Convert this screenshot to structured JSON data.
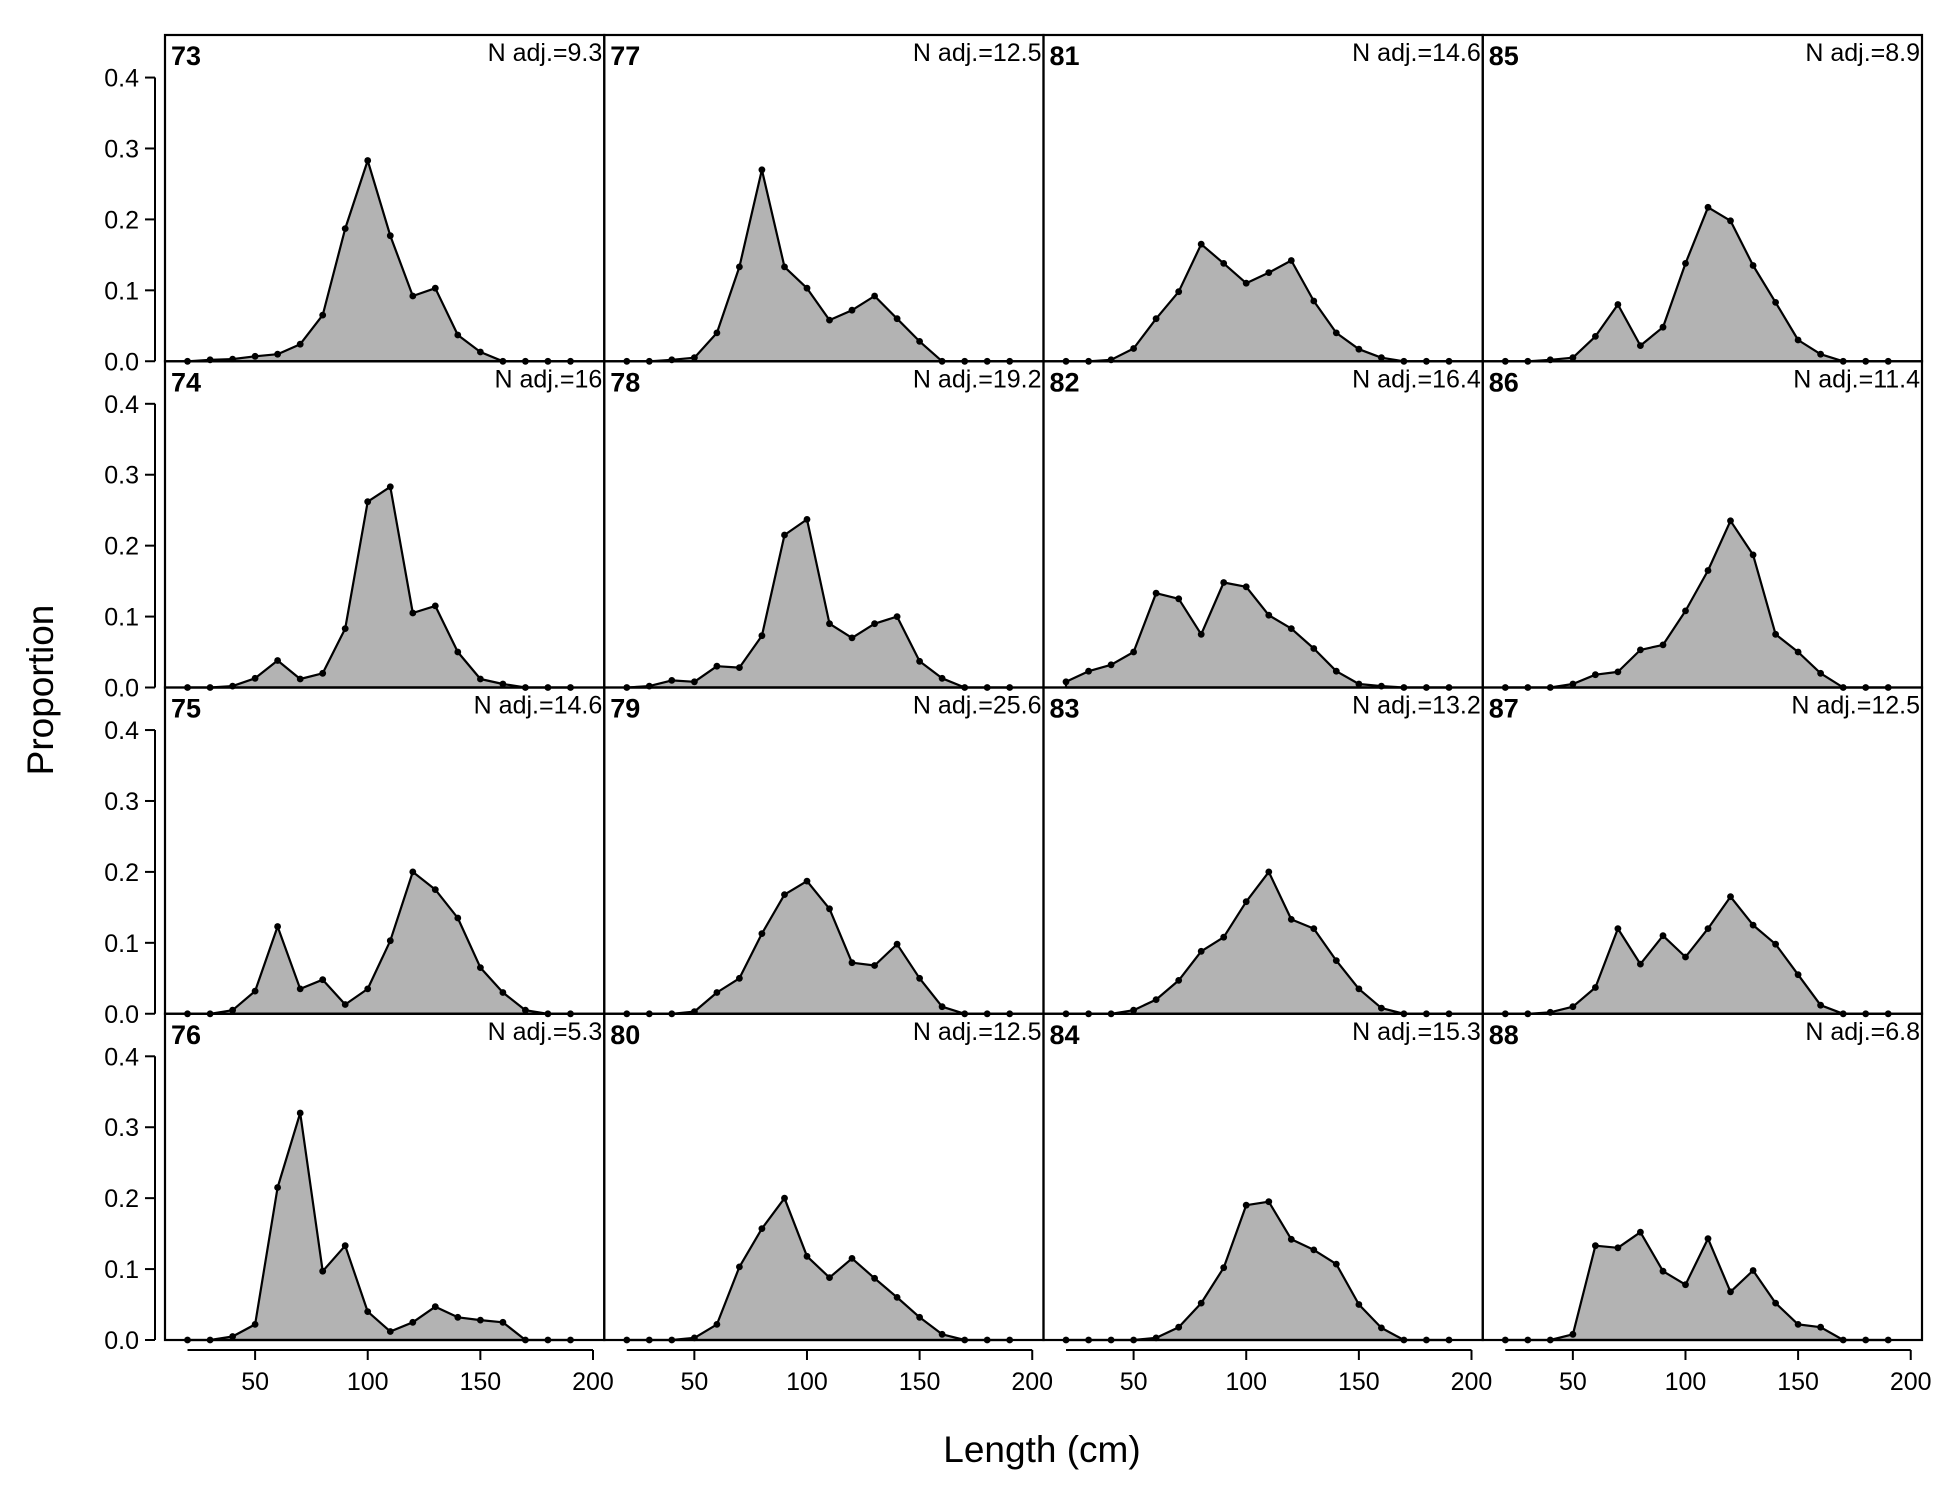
{
  "colors": {
    "fill": "#b3b3b3",
    "line": "#000000",
    "point": "#000000"
  },
  "chart_data": {
    "type": "area",
    "xlabel": "Length (cm)",
    "ylabel": "Proportion",
    "xlim": [
      10,
      205
    ],
    "ylim": [
      0,
      0.46
    ],
    "xticks": [
      50,
      100,
      150,
      200
    ],
    "yticks": [
      0.0,
      0.1,
      0.2,
      0.3,
      0.4
    ],
    "ytick_labels": [
      "0.0",
      "0.1",
      "0.2",
      "0.3",
      "0.4"
    ],
    "xtick_labels": [
      "50",
      "100",
      "150",
      "200"
    ],
    "grid": false,
    "x": [
      20,
      30,
      40,
      50,
      60,
      70,
      80,
      90,
      100,
      110,
      120,
      130,
      140,
      150,
      160,
      170,
      180,
      190
    ],
    "panels": [
      {
        "id": "73",
        "n_label": "N adj.=9.3",
        "values": [
          0,
          0.002,
          0.003,
          0.007,
          0.01,
          0.024,
          0.065,
          0.187,
          0.283,
          0.177,
          0.092,
          0.103,
          0.037,
          0.013,
          0,
          0,
          0,
          0
        ]
      },
      {
        "id": "77",
        "n_label": "N adj.=12.5",
        "values": [
          0,
          0,
          0.002,
          0.005,
          0.04,
          0.133,
          0.27,
          0.133,
          0.103,
          0.058,
          0.072,
          0.092,
          0.06,
          0.028,
          0,
          0,
          0,
          0
        ]
      },
      {
        "id": "81",
        "n_label": "N adj.=14.6",
        "values": [
          0,
          0,
          0.002,
          0.018,
          0.06,
          0.098,
          0.165,
          0.138,
          0.11,
          0.125,
          0.142,
          0.085,
          0.04,
          0.017,
          0.005,
          0,
          0,
          0
        ]
      },
      {
        "id": "85",
        "n_label": "N adj.=8.9",
        "values": [
          0,
          0,
          0.002,
          0.005,
          0.035,
          0.08,
          0.022,
          0.048,
          0.138,
          0.217,
          0.198,
          0.135,
          0.083,
          0.03,
          0.01,
          0,
          0,
          0
        ]
      },
      {
        "id": "74",
        "n_label": "N adj.=16",
        "values": [
          0,
          0,
          0.002,
          0.013,
          0.038,
          0.012,
          0.02,
          0.083,
          0.262,
          0.283,
          0.105,
          0.115,
          0.05,
          0.012,
          0.005,
          0,
          0,
          0
        ]
      },
      {
        "id": "78",
        "n_label": "N adj.=19.2",
        "values": [
          0,
          0.002,
          0.01,
          0.008,
          0.03,
          0.028,
          0.073,
          0.215,
          0.237,
          0.09,
          0.07,
          0.09,
          0.1,
          0.037,
          0.013,
          0,
          0,
          0
        ]
      },
      {
        "id": "82",
        "n_label": "N adj.=16.4",
        "values": [
          0.008,
          0.023,
          0.032,
          0.05,
          0.133,
          0.125,
          0.075,
          0.148,
          0.142,
          0.102,
          0.083,
          0.055,
          0.023,
          0.005,
          0.002,
          0,
          0,
          0
        ]
      },
      {
        "id": "86",
        "n_label": "N adj.=11.4",
        "values": [
          0,
          0,
          0,
          0.005,
          0.018,
          0.022,
          0.053,
          0.06,
          0.108,
          0.165,
          0.235,
          0.187,
          0.075,
          0.05,
          0.02,
          0,
          0,
          0
        ]
      },
      {
        "id": "75",
        "n_label": "N adj.=14.6",
        "values": [
          0,
          0,
          0.005,
          0.032,
          0.123,
          0.035,
          0.048,
          0.013,
          0.035,
          0.103,
          0.2,
          0.175,
          0.135,
          0.065,
          0.03,
          0.005,
          0,
          0
        ]
      },
      {
        "id": "79",
        "n_label": "N adj.=25.6",
        "values": [
          0,
          0,
          0,
          0.003,
          0.03,
          0.05,
          0.113,
          0.168,
          0.187,
          0.148,
          0.072,
          0.068,
          0.098,
          0.05,
          0.01,
          0,
          0,
          0
        ]
      },
      {
        "id": "83",
        "n_label": "N adj.=13.2",
        "values": [
          0,
          0,
          0,
          0.005,
          0.02,
          0.047,
          0.088,
          0.108,
          0.158,
          0.2,
          0.133,
          0.12,
          0.075,
          0.035,
          0.008,
          0,
          0,
          0
        ]
      },
      {
        "id": "87",
        "n_label": "N adj.=12.5",
        "values": [
          0,
          0,
          0.002,
          0.01,
          0.037,
          0.12,
          0.07,
          0.11,
          0.08,
          0.12,
          0.165,
          0.125,
          0.098,
          0.055,
          0.012,
          0,
          0,
          0
        ]
      },
      {
        "id": "76",
        "n_label": "N adj.=5.3",
        "values": [
          0,
          0,
          0.005,
          0.022,
          0.215,
          0.32,
          0.097,
          0.133,
          0.04,
          0.012,
          0.025,
          0.047,
          0.032,
          0.028,
          0.025,
          0,
          0,
          0
        ]
      },
      {
        "id": "80",
        "n_label": "N adj.=12.5",
        "values": [
          0,
          0,
          0,
          0.003,
          0.022,
          0.103,
          0.157,
          0.2,
          0.118,
          0.088,
          0.115,
          0.087,
          0.06,
          0.032,
          0.008,
          0,
          0,
          0
        ]
      },
      {
        "id": "84",
        "n_label": "N adj.=15.3",
        "values": [
          0,
          0,
          0,
          0,
          0.003,
          0.018,
          0.052,
          0.102,
          0.19,
          0.195,
          0.142,
          0.127,
          0.107,
          0.05,
          0.017,
          0,
          0,
          0
        ]
      },
      {
        "id": "88",
        "n_label": "N adj.=6.8",
        "values": [
          0,
          0,
          0,
          0.008,
          0.133,
          0.13,
          0.152,
          0.097,
          0.078,
          0.143,
          0.068,
          0.098,
          0.052,
          0.022,
          0.018,
          0,
          0,
          0
        ]
      }
    ]
  }
}
